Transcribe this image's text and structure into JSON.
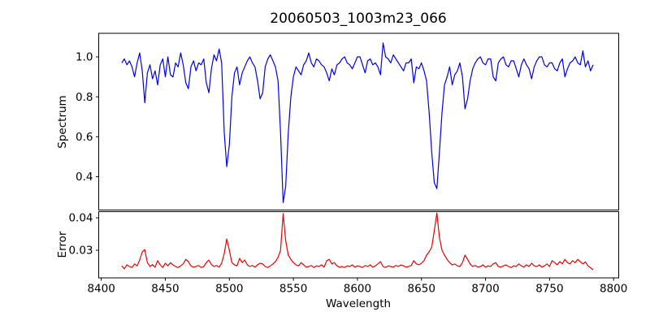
{
  "title": "20060503_1003m23_066",
  "colors": {
    "spectrum_line": "#0000ee",
    "error_line": "#ee0000",
    "axis": "#000000",
    "background": "#ffffff"
  },
  "chart_data": {
    "type": "line",
    "title": "20060503_1003m23_066",
    "xlabel": "Wavelength",
    "grid": false,
    "legend": "none",
    "x_start": 8416,
    "x_step": 2,
    "xlim": [
      8398,
      8804
    ],
    "xticks": [
      8400,
      8450,
      8500,
      8550,
      8600,
      8650,
      8700,
      8750,
      8800
    ],
    "xtick_labels": [
      "8400",
      "8450",
      "8500",
      "8550",
      "8600",
      "8650",
      "8700",
      "8750",
      "8800"
    ],
    "panels": [
      {
        "name": "spectrum",
        "ylabel": "Spectrum",
        "color": "#0000ee",
        "ylim": [
          0.233,
          1.118
        ],
        "yticks": [
          0.4,
          0.6,
          0.8,
          1.0
        ],
        "ytick_labels": [
          "0.4",
          "0.6",
          "0.8",
          "1.0"
        ],
        "absorption_lines": [
          {
            "wavelength": 8498,
            "depth": 0.45
          },
          {
            "wavelength": 8542,
            "depth": 0.27
          },
          {
            "wavelength": 8662,
            "depth": 0.34
          },
          {
            "wavelength": 8434,
            "depth": 0.77
          },
          {
            "wavelength": 8685,
            "depth": 0.73
          }
        ],
        "values": [
          0.97,
          0.99,
          0.96,
          0.98,
          0.95,
          0.9,
          0.97,
          1.02,
          0.93,
          0.77,
          0.92,
          0.96,
          0.89,
          0.93,
          0.86,
          0.96,
          0.99,
          0.9,
          1.0,
          0.91,
          0.9,
          0.97,
          0.95,
          1.02,
          0.96,
          0.87,
          0.84,
          0.95,
          0.98,
          0.93,
          0.97,
          0.96,
          0.99,
          0.87,
          0.82,
          0.94,
          1.01,
          0.98,
          1.04,
          0.97,
          0.62,
          0.45,
          0.56,
          0.8,
          0.92,
          0.95,
          0.86,
          0.92,
          0.95,
          0.98,
          1.0,
          0.97,
          0.95,
          0.88,
          0.79,
          0.82,
          0.95,
          0.99,
          1.01,
          0.98,
          0.95,
          0.88,
          0.62,
          0.27,
          0.35,
          0.62,
          0.8,
          0.9,
          0.95,
          0.93,
          0.91,
          0.96,
          0.98,
          1.02,
          0.97,
          0.95,
          0.99,
          0.98,
          0.96,
          0.95,
          0.92,
          0.88,
          0.94,
          0.91,
          0.96,
          0.97,
          0.99,
          1.0,
          0.97,
          0.96,
          0.94,
          0.97,
          1.0,
          1.0,
          0.96,
          0.92,
          0.98,
          0.99,
          0.96,
          0.97,
          0.95,
          0.91,
          1.07,
          1.0,
          0.99,
          0.97,
          1.01,
          0.99,
          0.97,
          0.95,
          0.93,
          0.97,
          0.97,
          0.99,
          0.87,
          0.95,
          0.94,
          0.97,
          0.93,
          0.88,
          0.72,
          0.52,
          0.37,
          0.34,
          0.52,
          0.72,
          0.86,
          0.9,
          0.95,
          0.86,
          0.91,
          0.93,
          0.97,
          0.9,
          0.74,
          0.79,
          0.88,
          0.94,
          0.97,
          0.99,
          1.0,
          0.97,
          0.96,
          0.99,
          0.99,
          0.9,
          0.88,
          0.97,
          0.99,
          1.0,
          0.96,
          0.95,
          0.98,
          0.98,
          0.94,
          0.9,
          0.96,
          0.99,
          0.96,
          0.94,
          0.89,
          0.95,
          0.98,
          1.0,
          1.0,
          0.96,
          0.95,
          0.97,
          0.97,
          0.94,
          0.93,
          0.97,
          0.99,
          0.9,
          0.94,
          0.97,
          0.98,
          1.0,
          0.97,
          0.96,
          1.03,
          0.95,
          0.98,
          0.93,
          0.96
        ]
      },
      {
        "name": "error",
        "ylabel": "Error",
        "color": "#ee0000",
        "ylim": [
          0.0215,
          0.0419
        ],
        "yticks": [
          0.03,
          0.04
        ],
        "ytick_labels": [
          "0.03",
          "0.04"
        ],
        "peaks": [
          {
            "wavelength": 8498,
            "value": 0.0335
          },
          {
            "wavelength": 8542,
            "value": 0.0413
          },
          {
            "wavelength": 8662,
            "value": 0.0415
          }
        ],
        "values": [
          0.0252,
          0.0243,
          0.0255,
          0.025,
          0.0247,
          0.0258,
          0.0252,
          0.027,
          0.0295,
          0.0302,
          0.0262,
          0.025,
          0.0256,
          0.0248,
          0.0268,
          0.0255,
          0.0247,
          0.026,
          0.0252,
          0.0262,
          0.0255,
          0.025,
          0.0247,
          0.0252,
          0.0258,
          0.0272,
          0.0265,
          0.0252,
          0.0248,
          0.025,
          0.0253,
          0.0247,
          0.025,
          0.0262,
          0.027,
          0.0256,
          0.025,
          0.0253,
          0.0248,
          0.026,
          0.029,
          0.0335,
          0.03,
          0.0262,
          0.0255,
          0.0252,
          0.0275,
          0.0262,
          0.027,
          0.0255,
          0.025,
          0.0253,
          0.0248,
          0.0255,
          0.026,
          0.0258,
          0.025,
          0.0247,
          0.0252,
          0.0258,
          0.0265,
          0.0278,
          0.03,
          0.0413,
          0.033,
          0.0285,
          0.0272,
          0.0262,
          0.0255,
          0.0252,
          0.0262,
          0.0255,
          0.0248,
          0.025,
          0.0253,
          0.0247,
          0.0252,
          0.025,
          0.0255,
          0.0248,
          0.0268,
          0.0272,
          0.0258,
          0.0262,
          0.0252,
          0.0248,
          0.025,
          0.0247,
          0.0252,
          0.025,
          0.0255,
          0.0248,
          0.0252,
          0.025,
          0.0247,
          0.0253,
          0.025,
          0.0255,
          0.0248,
          0.0252,
          0.0258,
          0.0265,
          0.025,
          0.0247,
          0.0252,
          0.025,
          0.0248,
          0.0253,
          0.025,
          0.0255,
          0.0252,
          0.0248,
          0.025,
          0.0253,
          0.0268,
          0.0258,
          0.0255,
          0.026,
          0.0268,
          0.0285,
          0.0295,
          0.031,
          0.036,
          0.0415,
          0.034,
          0.03,
          0.0285,
          0.0272,
          0.0262,
          0.0255,
          0.0258,
          0.0252,
          0.025,
          0.0262,
          0.0285,
          0.0272,
          0.0258,
          0.025,
          0.0253,
          0.0248,
          0.025,
          0.0255,
          0.0248,
          0.0252,
          0.025,
          0.0258,
          0.0262,
          0.025,
          0.0248,
          0.0252,
          0.0255,
          0.025,
          0.0247,
          0.0252,
          0.025,
          0.0258,
          0.0252,
          0.0248,
          0.0255,
          0.025,
          0.026,
          0.0252,
          0.025,
          0.0255,
          0.0248,
          0.0252,
          0.0258,
          0.025,
          0.0268,
          0.0262,
          0.0255,
          0.0265,
          0.0258,
          0.0272,
          0.0262,
          0.0258,
          0.0268,
          0.0262,
          0.0272,
          0.0265,
          0.0258,
          0.0264,
          0.0252,
          0.0246,
          0.024
        ]
      }
    ]
  }
}
